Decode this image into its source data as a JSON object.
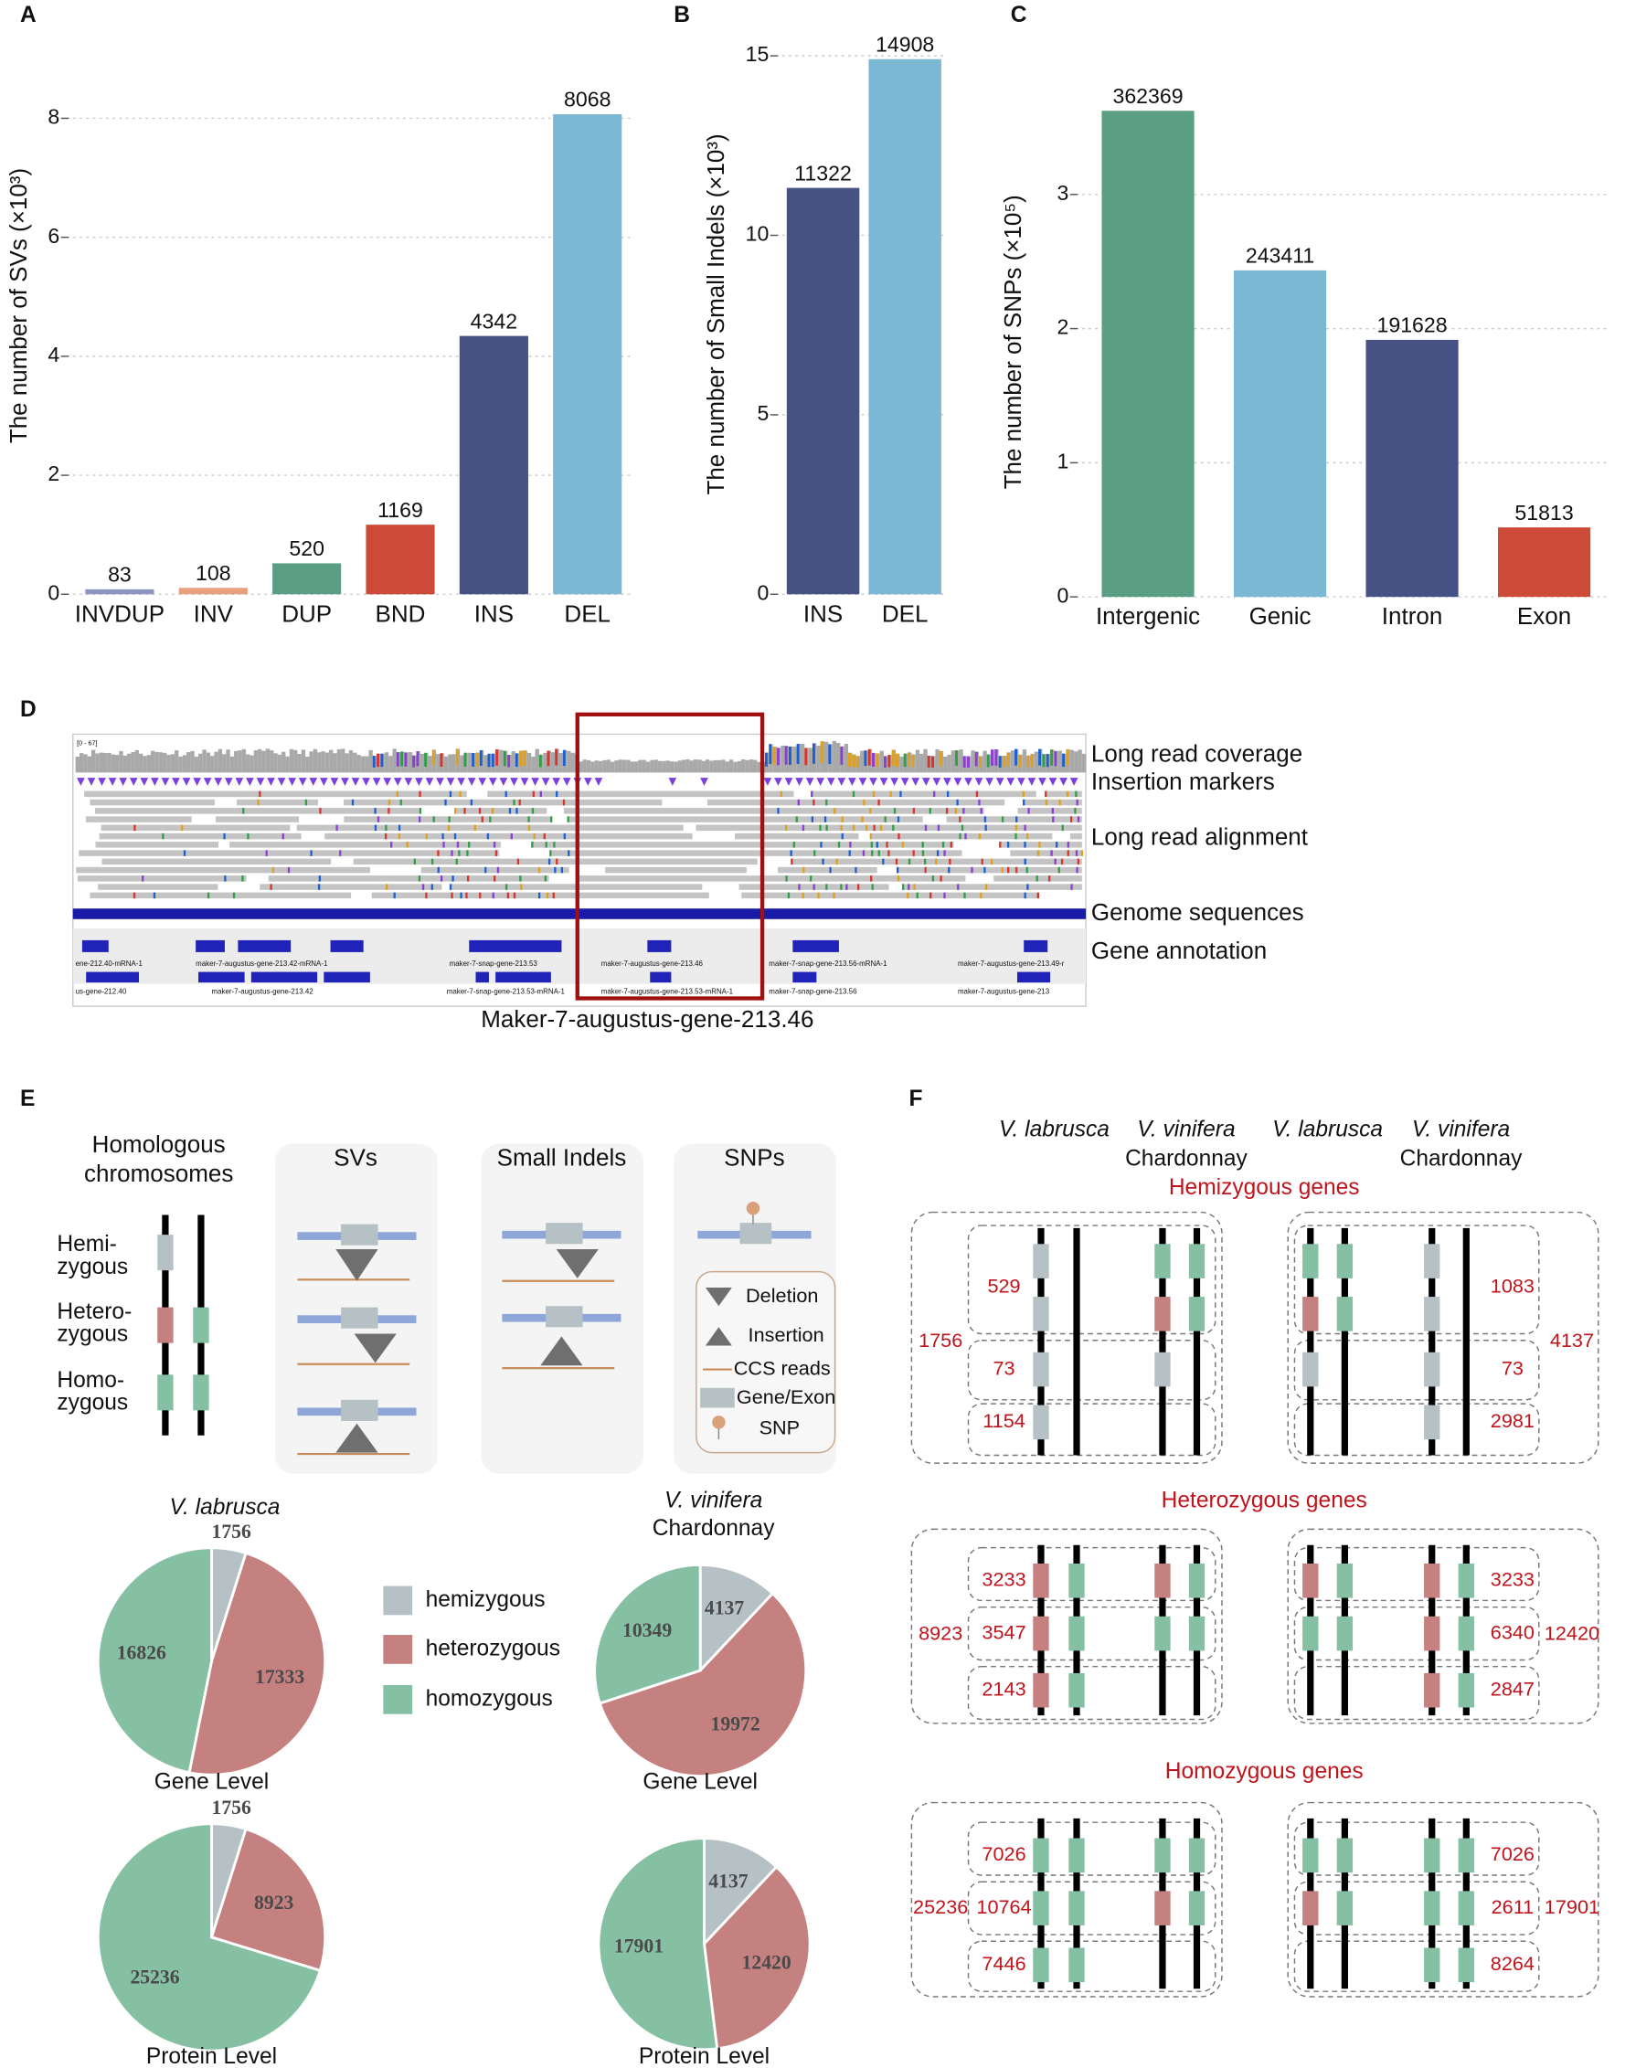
{
  "panel_labels": [
    "A",
    "B",
    "C",
    "D",
    "E",
    "F"
  ],
  "chart_data": [
    {
      "type": "bar",
      "ylabel": "The number of SVs (×10³)",
      "categories": [
        "INVDUP",
        "INV",
        "DUP",
        "BND",
        "INS",
        "DEL"
      ],
      "values": [
        0.083,
        0.108,
        0.52,
        1.169,
        4.342,
        8.068
      ],
      "value_labels": [
        "83",
        "108",
        "520",
        "1169",
        "4342",
        "8068"
      ],
      "colors": [
        "#8d95c0",
        "#e8a07f",
        "#5a9e84",
        "#cc4a37",
        "#465283",
        "#7ab8d4"
      ],
      "ylim": [
        0,
        9.7
      ],
      "yticks": [
        0,
        2,
        4,
        6,
        8
      ],
      "grid": true
    },
    {
      "type": "bar",
      "ylabel": "The number of Small Indels (×10³)",
      "categories": [
        "INS",
        "DEL"
      ],
      "values": [
        11.322,
        14.908
      ],
      "value_labels": [
        "11322",
        "14908"
      ],
      "colors": [
        "#465283",
        "#7ab8d4"
      ],
      "ylim": [
        0,
        15.6
      ],
      "yticks": [
        0,
        5,
        10,
        15
      ],
      "grid": true
    },
    {
      "type": "bar",
      "ylabel": "The number of SNPs (×10⁵)",
      "categories": [
        "Intergenic",
        "Genic",
        "Intron",
        "Exon"
      ],
      "values": [
        3.62369,
        2.43411,
        1.91628,
        0.51813
      ],
      "value_labels": [
        "362369",
        "243411",
        "191628",
        "51813"
      ],
      "colors": [
        "#5a9e84",
        "#7ab8d4",
        "#465283",
        "#cc4a37"
      ],
      "ylim": [
        0,
        3.8
      ],
      "yticks": [
        0,
        1,
        2,
        3
      ],
      "grid": true
    },
    {
      "type": "pie",
      "title": "V. labrusca",
      "caption": "Gene Level",
      "values": [
        1756,
        17333,
        16826
      ]
    },
    {
      "type": "pie",
      "caption": "Protein Level",
      "values": [
        1756,
        8923,
        25236
      ]
    },
    {
      "type": "pie",
      "title": "V. vinifera",
      "subtitle": "Chardonnay",
      "caption": "Gene Level",
      "values": [
        4137,
        19972,
        10349
      ]
    },
    {
      "type": "pie",
      "caption": "Protein Level",
      "values": [
        4137,
        12420,
        17901
      ]
    }
  ],
  "legend": {
    "labels": [
      "hemizygous",
      "heterozygous",
      "homozygous"
    ],
    "colors": [
      "#b6c1c5",
      "#c5817f",
      "#86c0a3"
    ]
  },
  "panel_d": {
    "range": "[0 - 67]",
    "tracks": [
      "Long read coverage",
      "Insertion markers",
      "Long read alignment",
      "Genome sequences",
      "Gene annotation"
    ],
    "genes_row1": [
      "ene-212.40-mRNA-1",
      "maker-7-augustus-gene-213.42-mRNA-1",
      "maker-7-snap-gene-213.53",
      "maker-7-augustus-gene-213.46",
      "maker-7-snap-gene-213.56-mRNA-1",
      "maker-7-augustus-gene-213.49-r"
    ],
    "genes_row2": [
      "us-gene-212.40",
      "maker-7-augustus-gene-213.42",
      "maker-7-snap-gene-213.53-mRNA-1",
      "maker-7-augustus-gene-213.53-mRNA-1",
      "maker-7-snap-gene-213.56",
      "maker-7-augustus-gene-213"
    ],
    "caption": "Maker-7-augustus-gene-213.46"
  },
  "panel_e": {
    "chromosome_title": [
      "Homologous",
      "chromosomes"
    ],
    "zygosity": [
      [
        "Hemi-",
        "zygous"
      ],
      [
        "Hetero-",
        "zygous"
      ],
      [
        "Homo-",
        "zygous"
      ]
    ],
    "boxes": [
      "SVs",
      "Small Indels",
      "SNPs"
    ],
    "key": [
      "Deletion",
      "Insertion",
      "CCS reads",
      "Gene/Exon",
      "SNP"
    ]
  },
  "panel_f": {
    "headers": [
      [
        "V. labrusca"
      ],
      [
        "V. vinifera",
        "Chardonnay"
      ],
      [
        "V. labrusca"
      ],
      [
        "V. vinifera",
        "Chardonnay"
      ]
    ],
    "sections": [
      {
        "title": "Hemizygous genes",
        "left": {
          "total": 1756,
          "rows": [
            529,
            73,
            1154
          ]
        },
        "right": {
          "total": 4137,
          "rows": [
            1083,
            73,
            2981
          ]
        }
      },
      {
        "title": "Heterozygous genes",
        "left": {
          "total": 8923,
          "rows": [
            3233,
            3547,
            2143
          ]
        },
        "right": {
          "total": 12420,
          "rows": [
            3233,
            6340,
            2847
          ]
        }
      },
      {
        "title": "Homozygous genes",
        "left": {
          "total": 25236,
          "rows": [
            7026,
            10764,
            7446
          ]
        },
        "right": {
          "total": 17901,
          "rows": [
            7026,
            2611,
            8264
          ]
        }
      }
    ]
  }
}
